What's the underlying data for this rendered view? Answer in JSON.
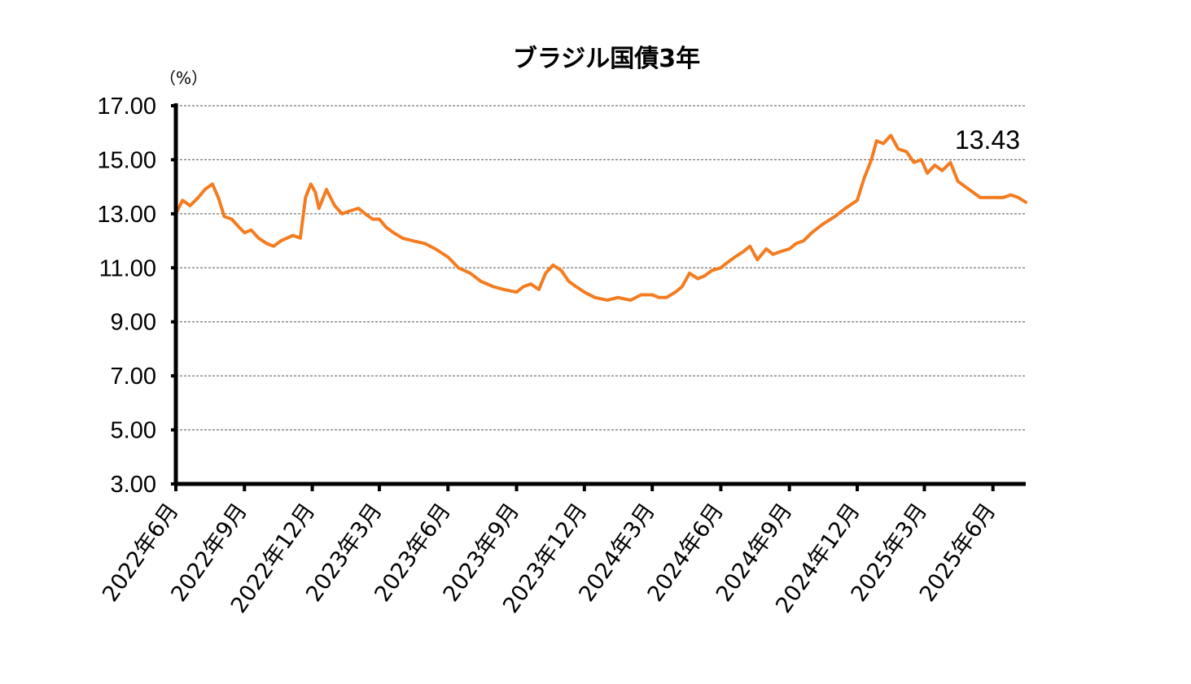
{
  "chart_data": {
    "type": "line",
    "title": "ブラジル国債3年",
    "ylabel": "（%）",
    "xlabel": "",
    "ylim": [
      3,
      17
    ],
    "y_ticks": [
      "17.00",
      "15.00",
      "13.00",
      "11.00",
      "9.00",
      "7.00",
      "5.00",
      "3.00"
    ],
    "grid": "horizontal-dashed",
    "legend": "none",
    "x_tick_labels": [
      "2022年6月",
      "2022年9月",
      "2022年12月",
      "2023年3月",
      "2023年6月",
      "2023年9月",
      "2023年12月",
      "2024年3月",
      "2024年6月",
      "2024年9月",
      "2024年12月",
      "2025年3月",
      "2025年6月"
    ],
    "last_value_label": "13.43",
    "series": [
      {
        "color": "#F47C20",
        "x": [
          "2022-06-01",
          "2022-06-10",
          "2022-06-20",
          "2022-07-01",
          "2022-07-10",
          "2022-07-20",
          "2022-07-28",
          "2022-08-05",
          "2022-08-15",
          "2022-08-25",
          "2022-09-01",
          "2022-09-10",
          "2022-09-20",
          "2022-10-01",
          "2022-10-10",
          "2022-10-20",
          "2022-10-28",
          "2022-11-05",
          "2022-11-15",
          "2022-11-22",
          "2022-11-29",
          "2022-12-05",
          "2022-12-10",
          "2022-12-20",
          "2022-12-31",
          "2023-01-10",
          "2023-01-20",
          "2023-02-01",
          "2023-02-10",
          "2023-02-20",
          "2023-03-01",
          "2023-03-10",
          "2023-03-20",
          "2023-04-01",
          "2023-04-15",
          "2023-05-01",
          "2023-05-15",
          "2023-06-01",
          "2023-06-15",
          "2023-07-01",
          "2023-07-15",
          "2023-08-01",
          "2023-08-15",
          "2023-09-01",
          "2023-09-10",
          "2023-09-20",
          "2023-10-01",
          "2023-10-10",
          "2023-10-20",
          "2023-10-31",
          "2023-11-10",
          "2023-11-20",
          "2023-12-01",
          "2023-12-15",
          "2024-01-01",
          "2024-01-15",
          "2024-02-01",
          "2024-02-15",
          "2024-03-01",
          "2024-03-10",
          "2024-03-20",
          "2024-04-01",
          "2024-04-10",
          "2024-04-20",
          "2024-05-01",
          "2024-05-10",
          "2024-05-20",
          "2024-06-01",
          "2024-06-10",
          "2024-06-20",
          "2024-07-01",
          "2024-07-10",
          "2024-07-20",
          "2024-08-01",
          "2024-08-10",
          "2024-08-20",
          "2024-09-01",
          "2024-09-10",
          "2024-09-20",
          "2024-10-01",
          "2024-10-15",
          "2024-11-01",
          "2024-11-15",
          "2024-12-01",
          "2024-12-10",
          "2024-12-20",
          "2024-12-27",
          "2025-01-05",
          "2025-01-15",
          "2025-01-25",
          "2025-02-05",
          "2025-02-15",
          "2025-02-25",
          "2025-03-05",
          "2025-03-15",
          "2025-03-25",
          "2025-04-05",
          "2025-04-15",
          "2025-04-25",
          "2025-05-05",
          "2025-05-15",
          "2025-05-25",
          "2025-06-05",
          "2025-06-15",
          "2025-06-25",
          "2025-07-05",
          "2025-07-15"
        ],
        "values": [
          13.0,
          13.5,
          13.3,
          13.6,
          13.9,
          14.1,
          13.6,
          12.9,
          12.8,
          12.5,
          12.3,
          12.4,
          12.1,
          11.9,
          11.8,
          12.0,
          12.1,
          12.2,
          12.1,
          13.6,
          14.1,
          13.8,
          13.2,
          13.9,
          13.3,
          13.0,
          13.1,
          13.2,
          13.0,
          12.8,
          12.8,
          12.5,
          12.3,
          12.1,
          12.0,
          11.9,
          11.7,
          11.4,
          11.0,
          10.8,
          10.5,
          10.3,
          10.2,
          10.1,
          10.3,
          10.4,
          10.2,
          10.8,
          11.1,
          10.9,
          10.5,
          10.3,
          10.1,
          9.9,
          9.8,
          9.9,
          9.8,
          10.0,
          10.0,
          9.9,
          9.9,
          10.1,
          10.3,
          10.8,
          10.6,
          10.7,
          10.9,
          11.0,
          11.2,
          11.4,
          11.6,
          11.8,
          11.3,
          11.7,
          11.5,
          11.6,
          11.7,
          11.9,
          12.0,
          12.3,
          12.6,
          12.9,
          13.2,
          13.5,
          14.3,
          15.0,
          15.7,
          15.6,
          15.9,
          15.4,
          15.3,
          14.9,
          15.0,
          14.5,
          14.8,
          14.6,
          14.9,
          14.2,
          14.0,
          13.8,
          13.6,
          13.6,
          13.6,
          13.6,
          13.7,
          13.6,
          13.43
        ]
      }
    ]
  }
}
